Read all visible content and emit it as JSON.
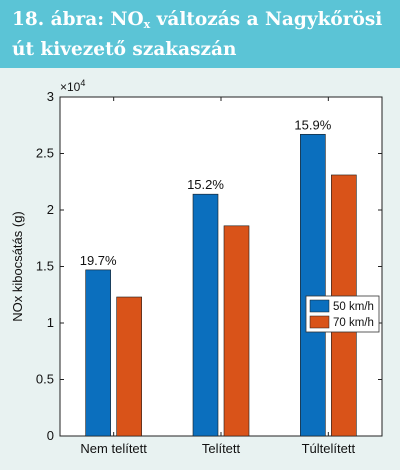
{
  "header": {
    "title_prefix": "18. ábra: NO",
    "title_sub": "x",
    "title_suffix": " változás a Nagykőrösi út kivezető szakaszán"
  },
  "colors": {
    "header_bg": "#5bc4d6",
    "panel_bg": "#e8f2f1",
    "series_50": "#0b6fbe",
    "series_70": "#d95319"
  },
  "chart_data": {
    "type": "bar",
    "categories": [
      "Nem telített",
      "Telített",
      "Túltelített"
    ],
    "series": [
      {
        "name": "50 km/h",
        "values": [
          14700,
          21400,
          26700
        ]
      },
      {
        "name": "70 km/h",
        "values": [
          12300,
          18600,
          23100
        ]
      }
    ],
    "annotations": [
      "19.7%",
      "15.2%",
      "15.9%"
    ],
    "xlabel": "",
    "ylabel": "NOx kibocsátás (g)",
    "ylim": [
      0,
      30000
    ],
    "ytick_labels": [
      "0",
      "0.5",
      "1",
      "1.5",
      "2",
      "2.5",
      "3"
    ],
    "exponent_label": "×10",
    "exponent_power": "4",
    "legend_position": "right",
    "grid": false
  }
}
